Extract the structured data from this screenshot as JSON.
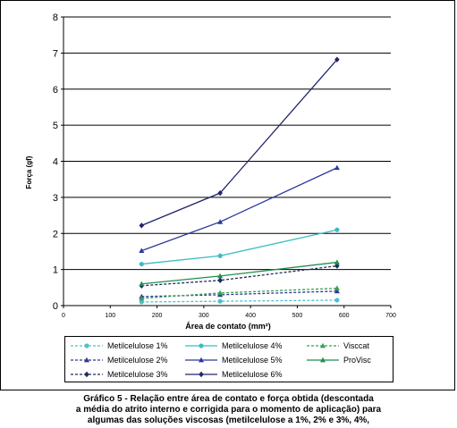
{
  "chart_data": {
    "type": "line",
    "title": "",
    "xlabel": "Área de contato (mm²)",
    "ylabel": "Força (gf)",
    "xlim": [
      0,
      700
    ],
    "ylim": [
      0,
      8
    ],
    "xticks": [
      0,
      100,
      200,
      300,
      400,
      500,
      600,
      700
    ],
    "yticks": [
      0,
      1,
      2,
      3,
      4,
      5,
      6,
      7,
      8
    ],
    "grid": "horizontal",
    "legend_position": "bottom",
    "series": [
      {
        "name": "Metilcelulose 1%",
        "x": [
          167,
          335,
          585
        ],
        "values": [
          0.1,
          0.12,
          0.15
        ],
        "color": "#4fc0c8",
        "marker": "circle",
        "dash": "dashed"
      },
      {
        "name": "Metilcelulose 2%",
        "x": [
          167,
          335,
          585
        ],
        "values": [
          0.25,
          0.3,
          0.4
        ],
        "color": "#2b3a8c",
        "marker": "triangle",
        "dash": "dashed"
      },
      {
        "name": "Metilcelulose 3%",
        "x": [
          167,
          335,
          585
        ],
        "values": [
          0.55,
          0.7,
          1.1
        ],
        "color": "#1f2a60",
        "marker": "diamond",
        "dash": "dashed"
      },
      {
        "name": "Metilcelulose 4%",
        "x": [
          167,
          335,
          585
        ],
        "values": [
          1.15,
          1.38,
          2.1
        ],
        "color": "#3dbcc2",
        "marker": "circle",
        "dash": "solid"
      },
      {
        "name": "Metilcelulose 5%",
        "x": [
          167,
          335,
          585
        ],
        "values": [
          1.52,
          2.32,
          3.82
        ],
        "color": "#2b3a9c",
        "marker": "triangle",
        "dash": "solid"
      },
      {
        "name": "Metilcelulose 6%",
        "x": [
          167,
          335,
          585
        ],
        "values": [
          2.22,
          3.12,
          6.82
        ],
        "color": "#22266a",
        "marker": "diamond",
        "dash": "solid"
      },
      {
        "name": "Visccat",
        "x": [
          167,
          335,
          585
        ],
        "values": [
          0.2,
          0.35,
          0.48
        ],
        "color": "#3a9e5a",
        "marker": "triangle",
        "dash": "dashed"
      },
      {
        "name": "ProVisc",
        "x": [
          167,
          335,
          585
        ],
        "values": [
          0.6,
          0.82,
          1.2
        ],
        "color": "#1f8f4a",
        "marker": "triangle",
        "dash": "solid"
      }
    ]
  },
  "legend": {
    "items": [
      "Metilcelulose 1%",
      "Metilcelulose 4%",
      "Visccat",
      "Metilcelulose 2%",
      "Metilcelulose 5%",
      "ProVisc",
      "Metilcelulose 3%",
      "Metilcelulose 6%"
    ]
  },
  "caption": {
    "line1": "Gráfico 5 - Relação entre área de contato e força obtida (descontada",
    "line2": "a média do atrito interno e corrigida para o momento de aplicação) para",
    "line3": "algumas das soluções viscosas (metilcelulose a 1%, 2% e 3%, 4%,"
  }
}
